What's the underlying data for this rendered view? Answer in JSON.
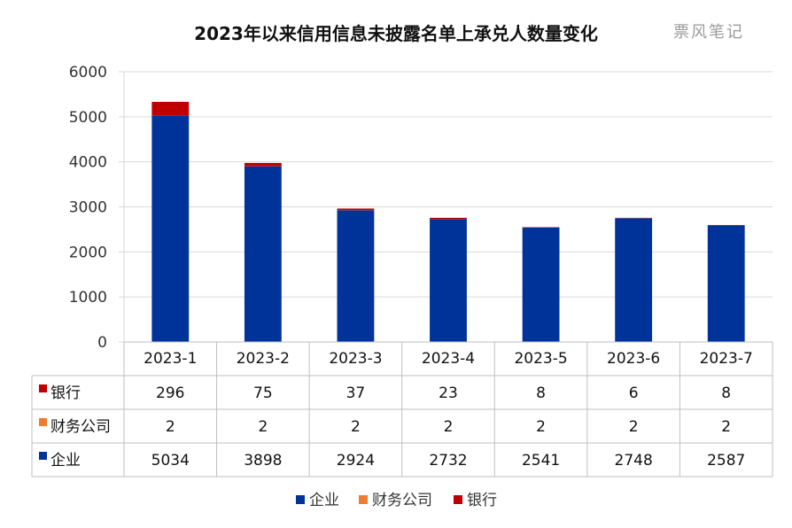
{
  "title": "2023年以来信用信息未披露名单上承兑人数量变化",
  "watermark": "票风笔记",
  "colors": {
    "企业": "#003399",
    "财务公司": "#ED7D31",
    "银行": "#C00000",
    "grid": "#d9d9d9"
  },
  "chart_data": {
    "type": "bar",
    "stacked": true,
    "categories": [
      "2023-1",
      "2023-2",
      "2023-3",
      "2023-4",
      "2023-5",
      "2023-6",
      "2023-7"
    ],
    "series": [
      {
        "name": "企业",
        "values": [
          5034,
          3898,
          2924,
          2732,
          2541,
          2748,
          2587
        ]
      },
      {
        "name": "财务公司",
        "values": [
          2,
          2,
          2,
          2,
          2,
          2,
          2
        ]
      },
      {
        "name": "银行",
        "values": [
          296,
          75,
          37,
          23,
          8,
          6,
          8
        ]
      }
    ],
    "ylim": [
      0,
      6000
    ],
    "yticks": [
      0,
      1000,
      2000,
      3000,
      4000,
      5000,
      6000
    ],
    "grid": true,
    "data_table": true,
    "table_row_order": [
      "银行",
      "财务公司",
      "企业"
    ],
    "legend_position": "bottom"
  }
}
